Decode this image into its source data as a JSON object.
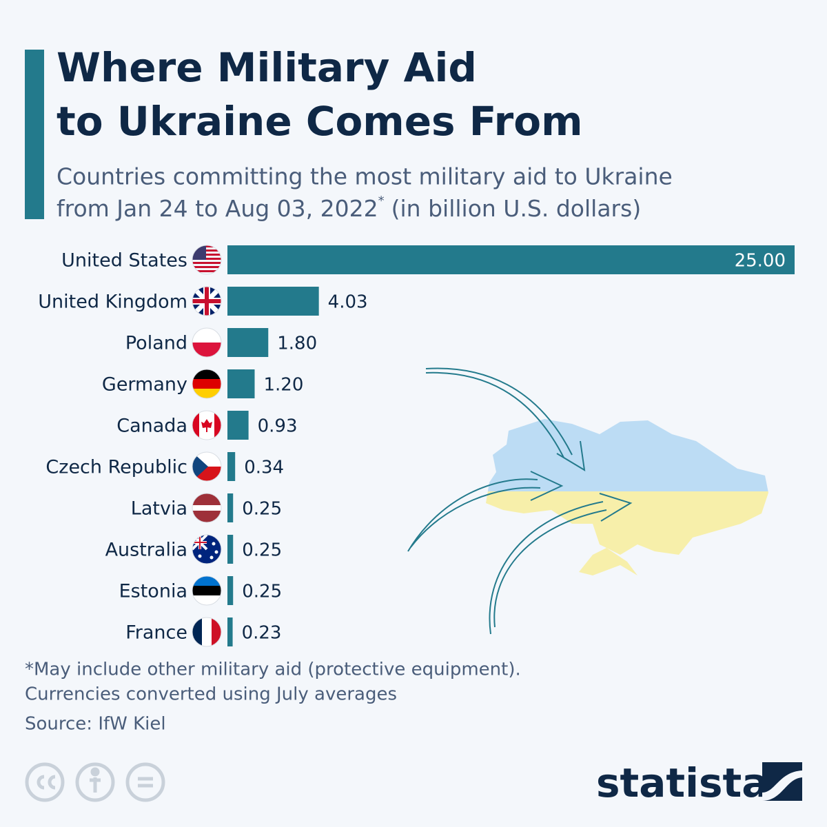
{
  "chart_data": {
    "type": "bar",
    "title": [
      "Where Military Aid",
      "to Ukraine Comes From"
    ],
    "subtitle": [
      "Countries committing the most military aid to Ukraine",
      "from Jan 24 to Aug 03, 2022",
      "*",
      "(in billion U.S. dollars)"
    ],
    "categories": [
      "United States",
      "United Kingdom",
      "Poland",
      "Germany",
      "Canada",
      "Czech Republic",
      "Latvia",
      "Australia",
      "Estonia",
      "France"
    ],
    "values": [
      25,
      4.03,
      1.8,
      1.2,
      0.93,
      0.34,
      0.25,
      0.25,
      0.25,
      0.23
    ],
    "value_labels": [
      "25.00",
      "4.03",
      "1.80",
      "1.20",
      "0.93",
      "0.34",
      "0.25",
      "0.25",
      "0.25",
      "0.23"
    ],
    "color": "#237a8c",
    "notes": [
      "*May include other military aid (protective equipment).",
      "Currencies converted using July averages"
    ],
    "source": "Source: IfW Kiel",
    "logo": "statista"
  }
}
